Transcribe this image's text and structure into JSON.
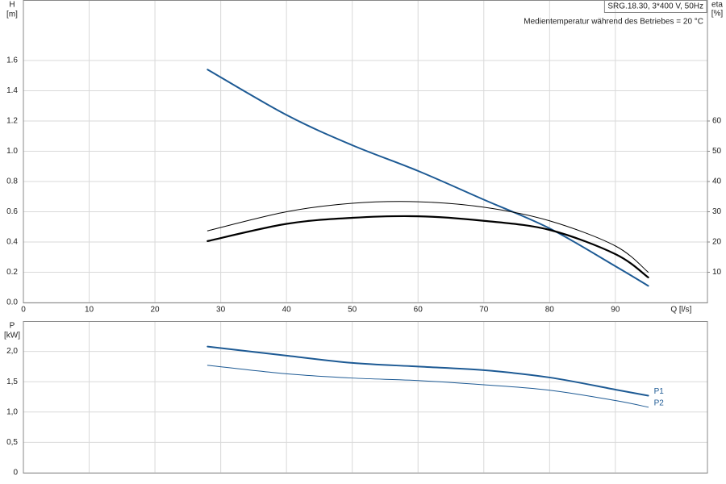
{
  "chart_data": [
    {
      "type": "line",
      "title": "SRG.18.30, 3*400 V, 50Hz",
      "subtitle": "Medientemperatur während des Betriebes = 20 °C",
      "y_label": "H",
      "y_unit": "[m]",
      "y2_label": "eta",
      "y2_unit": "[%]",
      "x_label": "Q [l/s]",
      "xlim": [
        0,
        104
      ],
      "xticks": [
        0,
        10,
        20,
        30,
        40,
        50,
        60,
        70,
        80,
        90
      ],
      "ylim": [
        0,
        2.0
      ],
      "yticks": [
        {
          "value": 0,
          "label": "0.0"
        },
        0.2,
        0.4,
        0.6,
        0.8,
        {
          "value": 1,
          "label": "1.0"
        },
        1.2,
        1.4,
        1.6
      ],
      "y2lim": [
        0,
        100
      ],
      "y2ticks": [
        10,
        20,
        30,
        40,
        50,
        60
      ],
      "grid": true,
      "x": [
        28,
        40,
        50,
        60,
        70,
        80,
        90,
        95
      ],
      "series": [
        {
          "color": "#1d5a94",
          "width": 2,
          "values": [
            1.54,
            1.24,
            1.04,
            0.87,
            0.68,
            0.49,
            0.24,
            0.11
          ]
        },
        {
          "color": "#000000",
          "width": 2.2,
          "axis": "y2",
          "values": [
            20.3,
            26,
            28,
            28.5,
            27,
            24,
            16,
            8.3
          ]
        },
        {
          "color": "#000000",
          "width": 1,
          "axis": "y2",
          "values": [
            23.7,
            30,
            32.8,
            33.3,
            31.5,
            27,
            18.7,
            10
          ]
        }
      ]
    },
    {
      "type": "line",
      "y_label": "P",
      "y_unit": "[kW]",
      "xlim": [
        0,
        104
      ],
      "xticks": [
        0,
        10,
        20,
        30,
        40,
        50,
        60,
        70,
        80,
        90
      ],
      "xtick_labels": false,
      "ylim": [
        0,
        2.5
      ],
      "yticks": [
        0,
        {
          "value": 0.5,
          "label": "0,5"
        },
        {
          "value": 1,
          "label": "1,0"
        },
        {
          "value": 1.5,
          "label": "1,5"
        },
        {
          "value": 2,
          "label": "2,0"
        }
      ],
      "grid": true,
      "x": [
        28,
        40,
        50,
        60,
        70,
        80,
        90,
        95
      ],
      "series": [
        {
          "name": "P1",
          "color": "#1d5a94",
          "width": 2,
          "values": [
            2.08,
            1.93,
            1.81,
            1.75,
            1.69,
            1.57,
            1.37,
            1.27
          ]
        },
        {
          "name": "P2",
          "color": "#1d5a94",
          "width": 1,
          "values": [
            1.77,
            1.63,
            1.56,
            1.52,
            1.45,
            1.36,
            1.19,
            1.08
          ]
        }
      ]
    }
  ]
}
